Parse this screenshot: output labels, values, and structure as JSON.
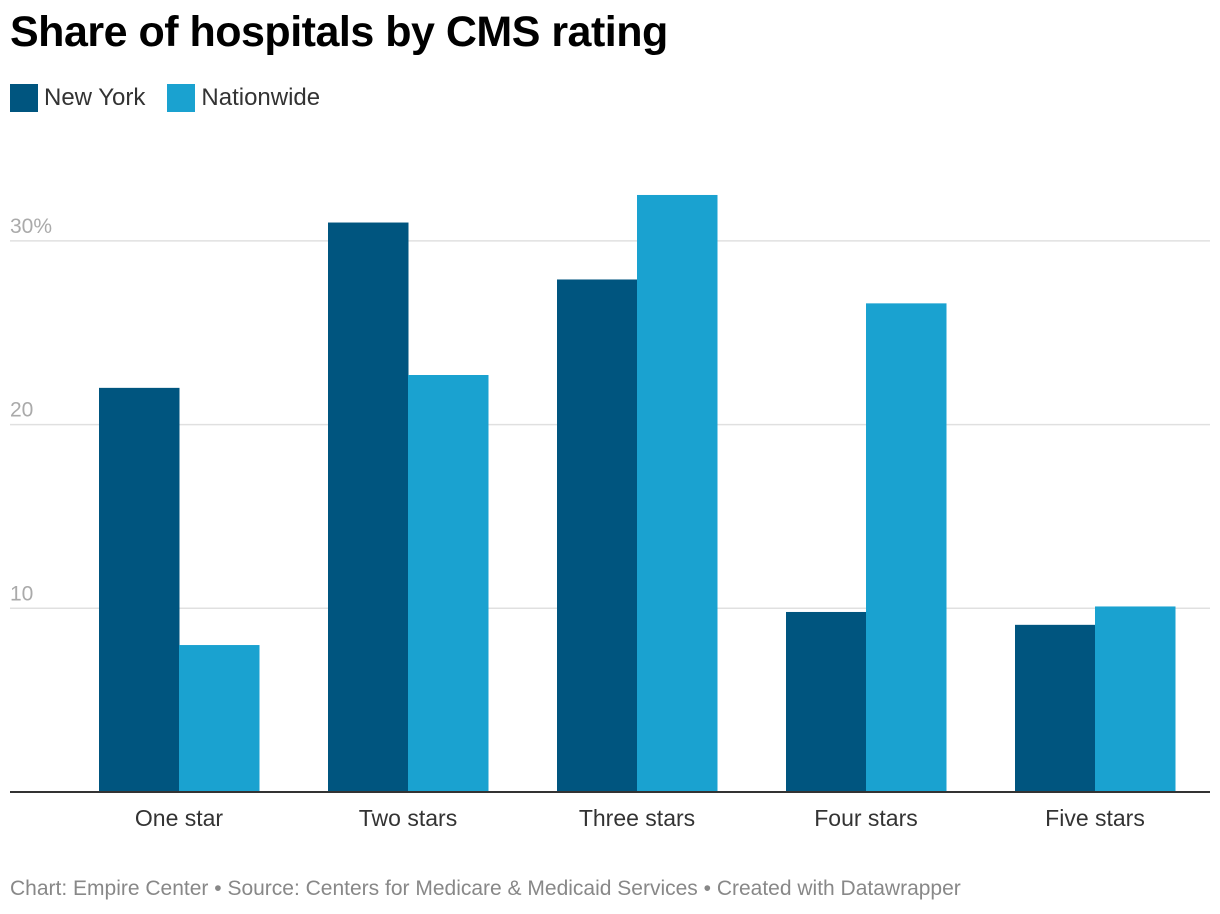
{
  "title": "Share of hospitals by CMS rating",
  "legend": [
    {
      "label": "New York",
      "color": "#00557f"
    },
    {
      "label": "Nationwide",
      "color": "#1aa2d0"
    }
  ],
  "footer": {
    "chart_credit": "Chart: Empire Center",
    "separator": " • ",
    "source": "Source: Centers for Medicare & Medicaid Services",
    "created_with": "Created with Datawrapper"
  },
  "chart_data": {
    "type": "bar",
    "title": "Share of hospitals by CMS rating",
    "xlabel": "",
    "ylabel": "",
    "categories": [
      "One star",
      "Two stars",
      "Three stars",
      "Four stars",
      "Five stars"
    ],
    "series": [
      {
        "name": "New York",
        "color": "#00557f",
        "values": [
          22.0,
          31.0,
          27.9,
          9.8,
          9.1
        ]
      },
      {
        "name": "Nationwide",
        "color": "#1aa2d0",
        "values": [
          8.0,
          22.7,
          32.5,
          26.6,
          10.1
        ]
      }
    ],
    "yticks": [
      {
        "value": 10,
        "label": "10"
      },
      {
        "value": 20,
        "label": "20"
      },
      {
        "value": 30,
        "label": "30%"
      }
    ],
    "ylim": [
      0,
      30
    ],
    "grid": true,
    "legend_position": "top-left"
  }
}
